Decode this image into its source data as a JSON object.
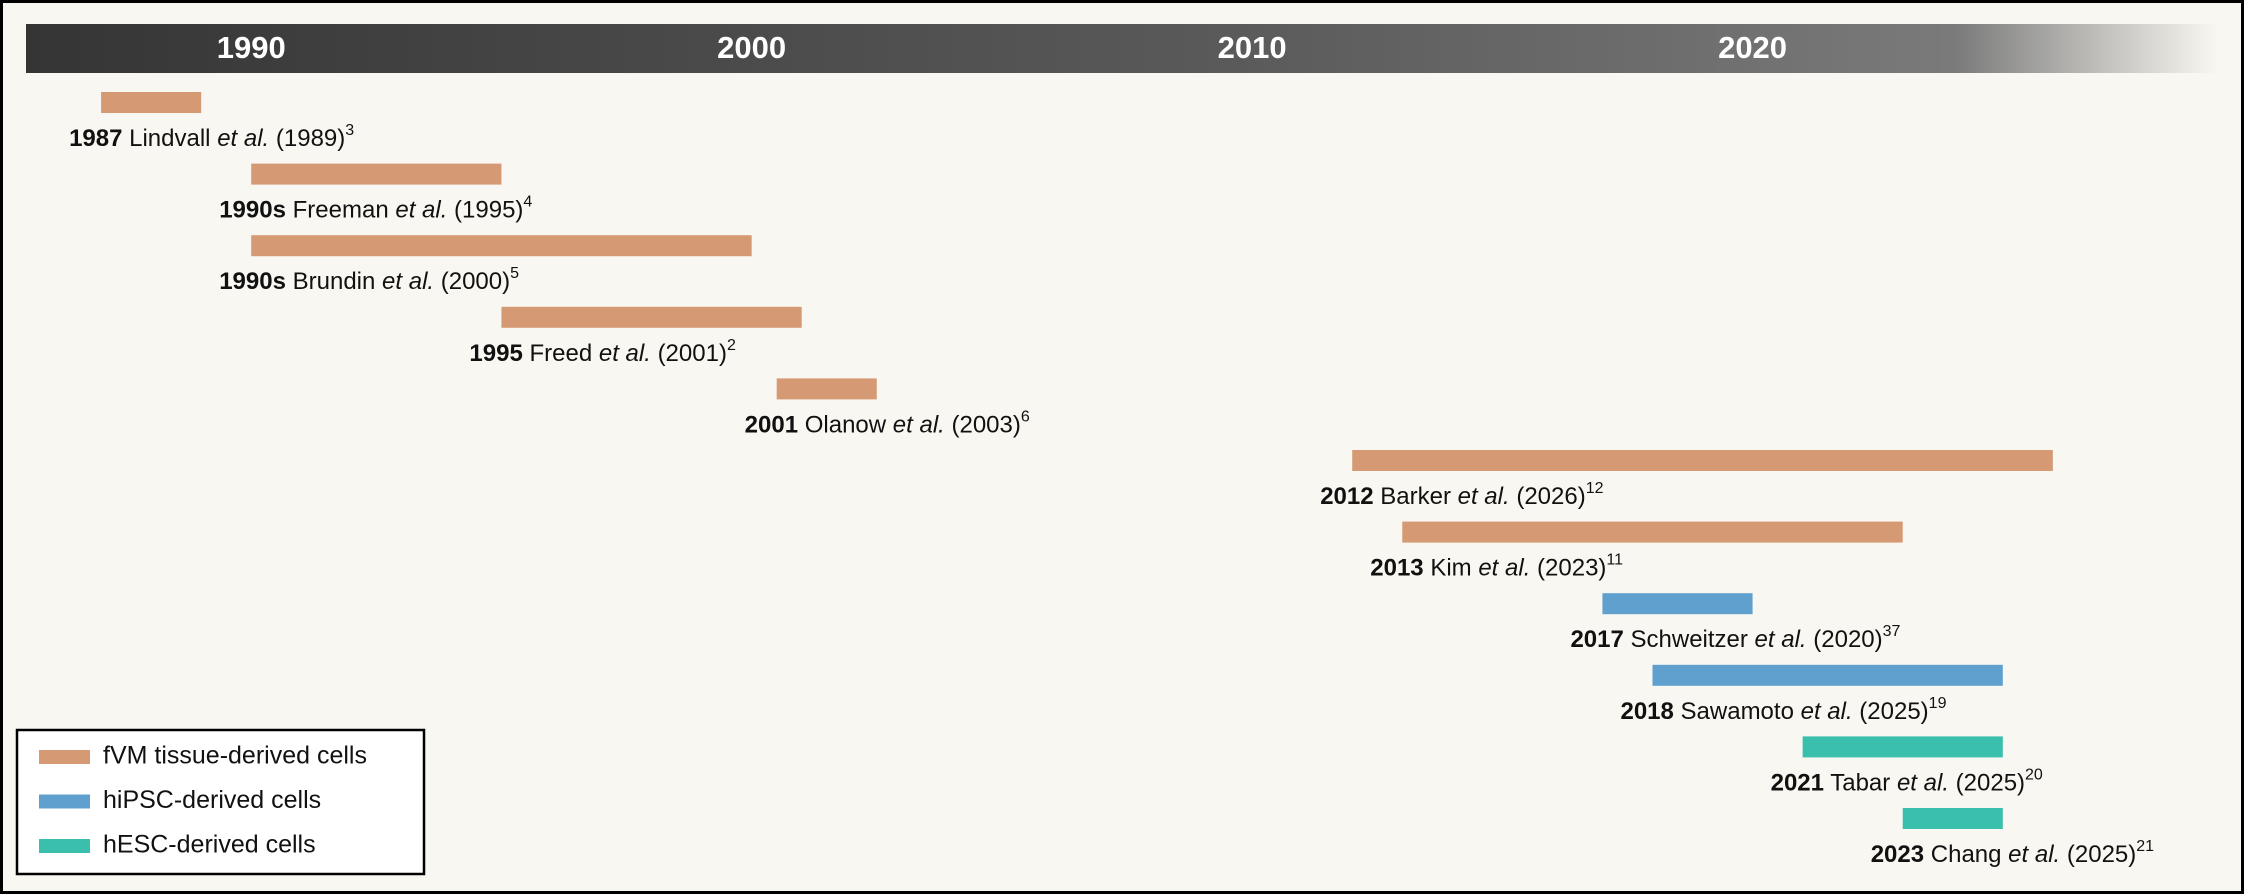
{
  "chart_data": {
    "type": "timeline",
    "xlim": [
      1985.5,
      2029.3
    ],
    "xticks": [
      1990,
      2000,
      2010,
      2020
    ],
    "series": [
      {
        "name": "fVM tissue-derived cells",
        "color": "#d59a73",
        "tasks": [
          {
            "start_label": "1987",
            "author": "Lindvall",
            "et_al": "et al.",
            "year_text": "(1989)",
            "ref": "3",
            "start": 1987,
            "end": 1989
          },
          {
            "start_label": "1990s",
            "author": "Freeman",
            "et_al": "et al.",
            "year_text": "(1995)",
            "ref": "4",
            "start": 1990,
            "end": 1995
          },
          {
            "start_label": "1990s",
            "author": "Brundin",
            "et_al": "et al.",
            "year_text": "(2000)",
            "ref": "5",
            "start": 1990,
            "end": 2000
          },
          {
            "start_label": "1995",
            "author": "Freed",
            "et_al": "et al.",
            "year_text": "(2001)",
            "ref": "2",
            "start": 1995,
            "end": 2001
          },
          {
            "start_label": "2001",
            "author": "Olanow",
            "et_al": "et al.",
            "year_text": "(2003)",
            "ref": "6",
            "start": 2000.5,
            "end": 2002.5
          },
          {
            "start_label": "2012",
            "author": "Barker",
            "et_al": "et al.",
            "year_text": "(2026)",
            "ref": "12",
            "start": 2012,
            "end": 2026
          },
          {
            "start_label": "2013",
            "author": "Kim",
            "et_al": "et al.",
            "year_text": "(2023)",
            "ref": "11",
            "start": 2013,
            "end": 2023
          }
        ]
      },
      {
        "name": "hiPSC-derived cells",
        "color": "#5fa0cf",
        "tasks": [
          {
            "start_label": "2017",
            "author": "Schweitzer",
            "et_al": "et al.",
            "year_text": "(2020)",
            "ref": "37",
            "start": 2017,
            "end": 2020
          },
          {
            "start_label": "2018",
            "author": "Sawamoto",
            "et_al": "et al.",
            "year_text": "(2025)",
            "ref": "19",
            "start": 2018,
            "end": 2025
          }
        ]
      },
      {
        "name": "hESC-derived cells",
        "color": "#3bbfad",
        "tasks": [
          {
            "start_label": "2021",
            "author": "Tabar",
            "et_al": "et al.",
            "year_text": "(2025)",
            "ref": "20",
            "start": 2021,
            "end": 2025
          },
          {
            "start_label": "2023",
            "author": "Chang",
            "et_al": "et al.",
            "year_text": "(2025)",
            "ref": "21",
            "start": 2023,
            "end": 2025
          }
        ]
      }
    ]
  }
}
